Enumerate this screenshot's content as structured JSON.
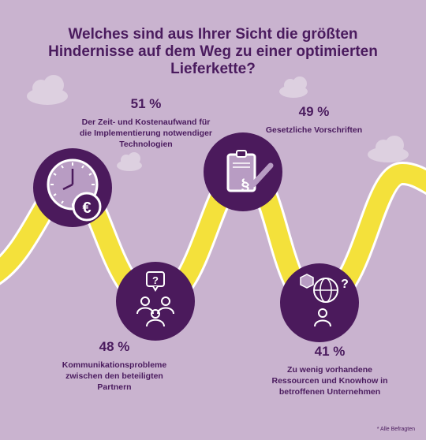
{
  "title": "Welches sind aus Ihrer Sicht die größten Hindernisse auf dem Weg zu einer optimierten Lieferkette?",
  "colors": {
    "background": "#c9b3cf",
    "road": "#f4e13b",
    "road_border": "#ffffff",
    "circle": "#4b1a5c",
    "accent": "#b89cc3",
    "cloud": "#ddd0e0"
  },
  "stats": [
    {
      "percent": "51 %",
      "description": "Der Zeit- und Kostenaufwand für die Implementierung notwendiger Technologien",
      "icon": "clock-euro-icon"
    },
    {
      "percent": "49 %",
      "description": "Gesetzliche Vorschriften",
      "icon": "clipboard-paragraph-check-icon"
    },
    {
      "percent": "48 %",
      "description": "Kommunikationsprobleme zwischen den beteiligten Partnern",
      "icon": "people-question-icon"
    },
    {
      "percent": "41 %",
      "description": "Zu wenig vorhandene Ressourcen und Knowhow in betroffenen Unternehmen",
      "icon": "globe-person-question-icon"
    }
  ],
  "footnote": "* Alle Befragten"
}
